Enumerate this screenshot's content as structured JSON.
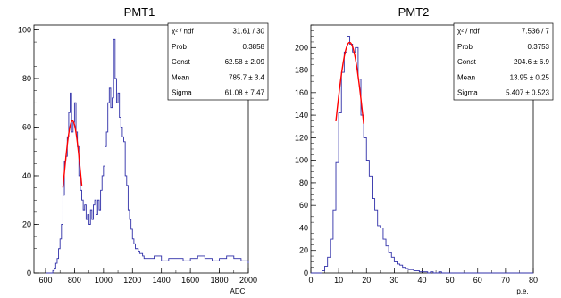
{
  "chart_data": [
    {
      "type": "histogram",
      "title": "PMT1",
      "xlabel": "ADC",
      "ylabel": "",
      "xlim": [
        520,
        2000
      ],
      "ylim": [
        0,
        102
      ],
      "xticks": [
        "600",
        "800",
        "1000",
        "1200",
        "1400",
        "1600",
        "1800",
        "2000"
      ],
      "yticks": [
        "0",
        "20",
        "40",
        "60",
        "80",
        "100"
      ],
      "histogram_color": "#2f2fa8",
      "fit_color": "#ff0000",
      "bins": {
        "x": [
          600,
          610,
          620,
          630,
          640,
          650,
          660,
          670,
          680,
          690,
          700,
          710,
          720,
          730,
          740,
          750,
          760,
          770,
          780,
          790,
          800,
          810,
          820,
          830,
          840,
          850,
          860,
          870,
          880,
          890,
          900,
          910,
          920,
          930,
          940,
          950,
          960,
          970,
          980,
          990,
          1000,
          1010,
          1020,
          1030,
          1040,
          1050,
          1060,
          1070,
          1080,
          1090,
          1100,
          1110,
          1120,
          1130,
          1140,
          1150,
          1160,
          1170,
          1180,
          1190,
          1200,
          1210,
          1220,
          1230,
          1240,
          1250,
          1260,
          1270,
          1280,
          1290,
          1300,
          1350,
          1400,
          1450,
          1500,
          1550,
          1600,
          1650,
          1700,
          1750,
          1800,
          1850,
          1900,
          1950,
          2000
        ],
        "y": [
          0,
          0,
          0,
          0,
          0,
          1,
          2,
          4,
          6,
          10,
          14,
          20,
          32,
          46,
          48,
          56,
          66,
          74,
          58,
          62,
          70,
          58,
          52,
          40,
          34,
          30,
          26,
          28,
          22,
          24,
          20,
          26,
          22,
          28,
          30,
          24,
          30,
          26,
          34,
          40,
          44,
          52,
          58,
          70,
          76,
          68,
          72,
          96,
          80,
          70,
          74,
          64,
          60,
          56,
          54,
          40,
          36,
          26,
          22,
          18,
          14,
          12,
          10,
          10,
          9,
          8,
          8,
          7,
          6,
          6,
          6,
          7,
          5,
          6,
          6,
          5,
          6,
          7,
          6,
          5,
          6,
          7,
          6,
          5,
          4
        ]
      },
      "fit": {
        "function": "gaus",
        "range": [
          720,
          850
        ],
        "const": 62.58,
        "mean": 785.7,
        "sigma": 61.08
      },
      "stats_box": [
        {
          "label": "χ² / ndf",
          "value": "31.61 / 30"
        },
        {
          "label": "Prob",
          "value": "0.3858"
        },
        {
          "label": "Const",
          "value": "62.58 ± 2.09"
        },
        {
          "label": "Mean",
          "value": "785.7 ± 3.4"
        },
        {
          "label": "Sigma",
          "value": "61.08 ± 7.47"
        }
      ]
    },
    {
      "type": "histogram",
      "title": "PMT2",
      "xlabel": "p.e.",
      "ylabel": "",
      "xlim": [
        0,
        80
      ],
      "ylim": [
        0,
        220
      ],
      "xticks": [
        "0",
        "10",
        "20",
        "30",
        "40",
        "50",
        "60",
        "70",
        "80"
      ],
      "yticks": [
        "0",
        "20",
        "40",
        "60",
        "80",
        "100",
        "120",
        "140",
        "160",
        "180",
        "200"
      ],
      "histogram_color": "#2f2fa8",
      "fit_color": "#ff0000",
      "bins": {
        "x": [
          0,
          1,
          2,
          3,
          4,
          5,
          6,
          7,
          8,
          9,
          10,
          11,
          12,
          13,
          14,
          15,
          16,
          17,
          18,
          19,
          20,
          21,
          22,
          23,
          24,
          25,
          26,
          27,
          28,
          29,
          30,
          31,
          32,
          33,
          34,
          35,
          36,
          37,
          38,
          39,
          40,
          41,
          42,
          43,
          44,
          45,
          46,
          47,
          48,
          49,
          50,
          51,
          52,
          53,
          54,
          55,
          56,
          57,
          58,
          59,
          60,
          61,
          62,
          63,
          64,
          65,
          66,
          67,
          68,
          69,
          70,
          71,
          72,
          73,
          74,
          75,
          76,
          77,
          78,
          79
        ],
        "y": [
          0,
          0,
          0,
          0,
          2,
          6,
          14,
          30,
          56,
          98,
          142,
          178,
          196,
          210,
          203,
          196,
          200,
          172,
          140,
          120,
          100,
          86,
          66,
          56,
          42,
          40,
          30,
          24,
          18,
          14,
          10,
          8,
          7,
          5,
          4,
          3,
          3,
          2,
          2,
          1,
          1,
          1,
          0,
          1,
          0,
          0,
          1,
          0,
          0,
          0,
          0,
          0,
          0,
          0,
          0,
          0,
          0,
          0,
          0,
          0,
          0,
          0,
          0,
          0,
          0,
          0,
          0,
          0,
          0,
          0,
          0,
          0,
          0,
          0,
          0,
          0,
          0,
          0,
          0,
          0
        ]
      },
      "fit": {
        "function": "gaus",
        "range": [
          9,
          19
        ],
        "const": 204.6,
        "mean": 13.95,
        "sigma": 5.407
      },
      "stats_box": [
        {
          "label": "χ² / ndf",
          "value": "7.536 / 7"
        },
        {
          "label": "Prob",
          "value": "0.3753"
        },
        {
          "label": "Const",
          "value": "204.6 ± 6.9"
        },
        {
          "label": "Mean",
          "value": "13.95 ± 0.25"
        },
        {
          "label": "Sigma",
          "value": "5.407 ± 0.523"
        }
      ]
    }
  ]
}
